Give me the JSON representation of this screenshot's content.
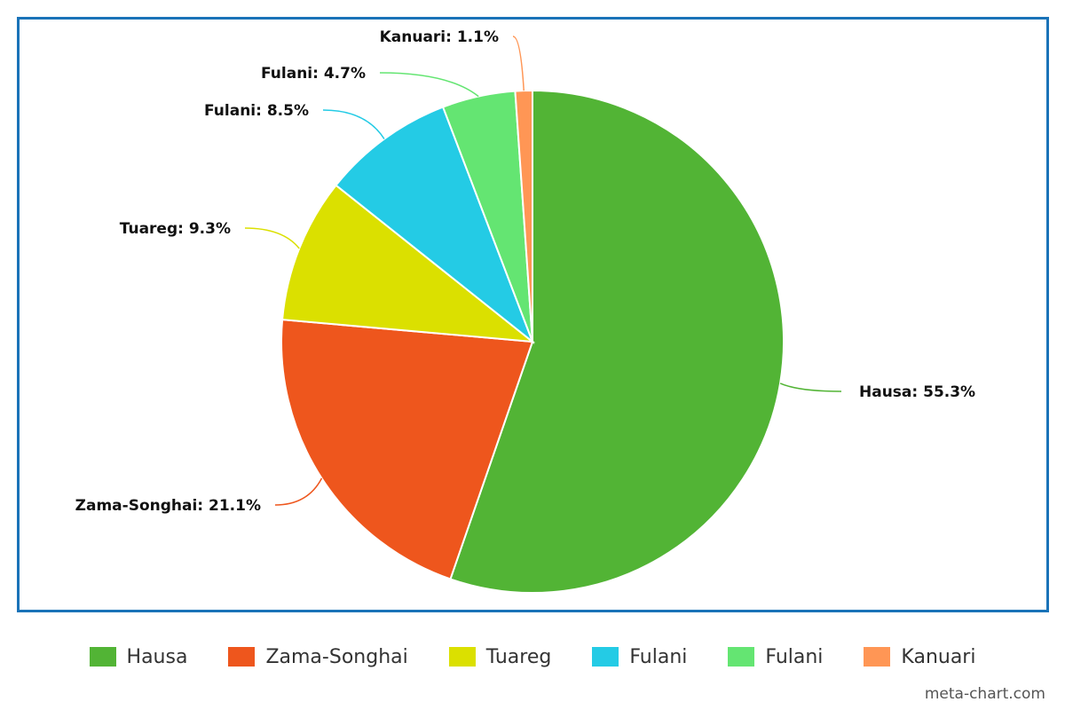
{
  "chart_data": {
    "type": "pie",
    "title": "",
    "slices": [
      {
        "name": "Hausa",
        "value": 55.3,
        "label": "Hausa: 55.3%",
        "color": "#52b435"
      },
      {
        "name": "Zama-Songhai",
        "value": 21.1,
        "label": "Zama-Songhai: 21.1%",
        "color": "#ee561d"
      },
      {
        "name": "Tuareg",
        "value": 9.3,
        "label": "Tuareg: 9.3%",
        "color": "#dbe000"
      },
      {
        "name": "Fulani",
        "value": 8.5,
        "label": "Fulani: 8.5%",
        "color": "#24cbe5"
      },
      {
        "name": "Fulani",
        "value": 4.7,
        "label": "Fulani: 4.7%",
        "color": "#64e572"
      },
      {
        "name": "Kanuari",
        "value": 1.1,
        "label": "Kanuari: 1.1%",
        "color": "#ff9655"
      }
    ],
    "legend": "bottom"
  },
  "watermark": "meta-chart.com",
  "colors": {
    "frame_border": "#1a73b8"
  }
}
